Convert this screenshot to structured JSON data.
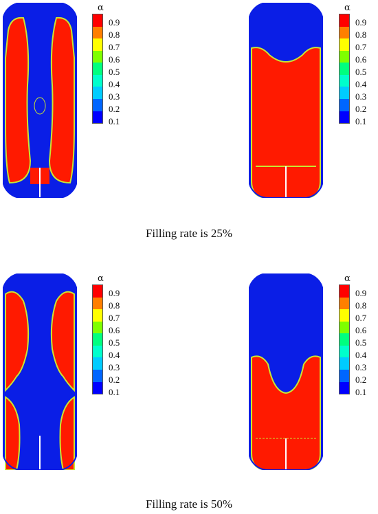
{
  "legend": {
    "symbol": "α",
    "levels": [
      "0.9",
      "0.8",
      "0.7",
      "0.6",
      "0.5",
      "0.4",
      "0.3",
      "0.2",
      "0.1"
    ],
    "colors": [
      "#ff0000",
      "#ff7f00",
      "#ffff00",
      "#7fff00",
      "#00ff7f",
      "#00ffcc",
      "#00ccff",
      "#0066ff",
      "#0000ff"
    ]
  },
  "captions": {
    "top": "Filling rate is 25%",
    "bottom": "Filling rate is 50%"
  },
  "colors": {
    "liquid": "#ff1a00",
    "gas": "#0a1ee6",
    "interface": "#c8e632"
  }
}
